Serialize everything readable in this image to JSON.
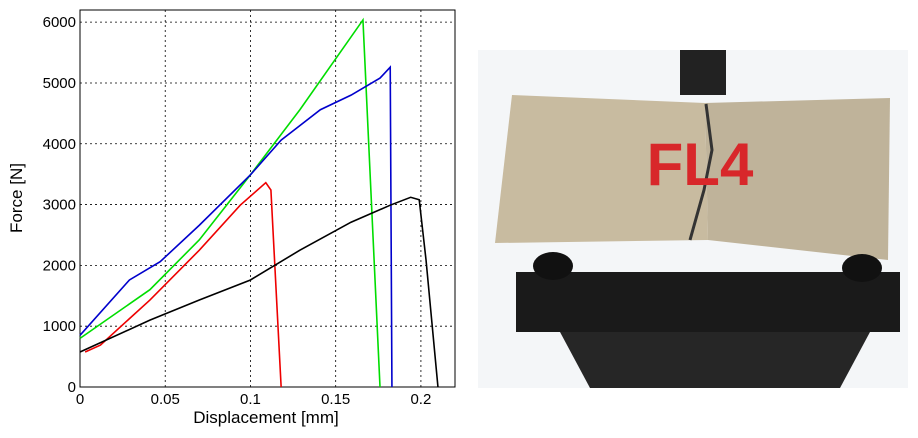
{
  "chart_data": {
    "type": "line",
    "xlabel": "Displacement [mm]",
    "ylabel": "Force [N]",
    "xlim": [
      0,
      0.22
    ],
    "ylim": [
      0,
      6200
    ],
    "xticks": [
      0,
      0.05,
      0.1,
      0.15,
      0.2
    ],
    "yticks": [
      0,
      1000,
      2000,
      3000,
      4000,
      5000,
      6000
    ],
    "grid": true,
    "series": [
      {
        "color": "#00dd00",
        "x": [
          0,
          0.041,
          0.07,
          0.1,
          0.129,
          0.166,
          0.176
        ],
        "values": [
          800,
          1600,
          2420,
          3490,
          4560,
          6036,
          0
        ]
      },
      {
        "color": "#0000cc",
        "x": [
          0,
          0.029,
          0.047,
          0.07,
          0.1,
          0.118,
          0.141,
          0.159,
          0.176,
          0.182,
          0.183
        ],
        "values": [
          850,
          1760,
          2060,
          2660,
          3490,
          4060,
          4560,
          4800,
          5080,
          5260,
          0
        ]
      },
      {
        "color": "#ee0000",
        "x": [
          0.003,
          0.012,
          0.041,
          0.07,
          0.094,
          0.109,
          0.112,
          0.118
        ],
        "values": [
          575,
          690,
          1430,
          2250,
          2990,
          3360,
          3240,
          0
        ]
      },
      {
        "color": "#000000",
        "x": [
          0,
          0.041,
          0.07,
          0.1,
          0.129,
          0.159,
          0.182,
          0.194,
          0.199,
          0.203,
          0.21
        ],
        "values": [
          575,
          1100,
          1430,
          1760,
          2250,
          2710,
          2990,
          3120,
          3080,
          2090,
          0
        ]
      }
    ]
  },
  "photo": {
    "label": "FL4"
  }
}
